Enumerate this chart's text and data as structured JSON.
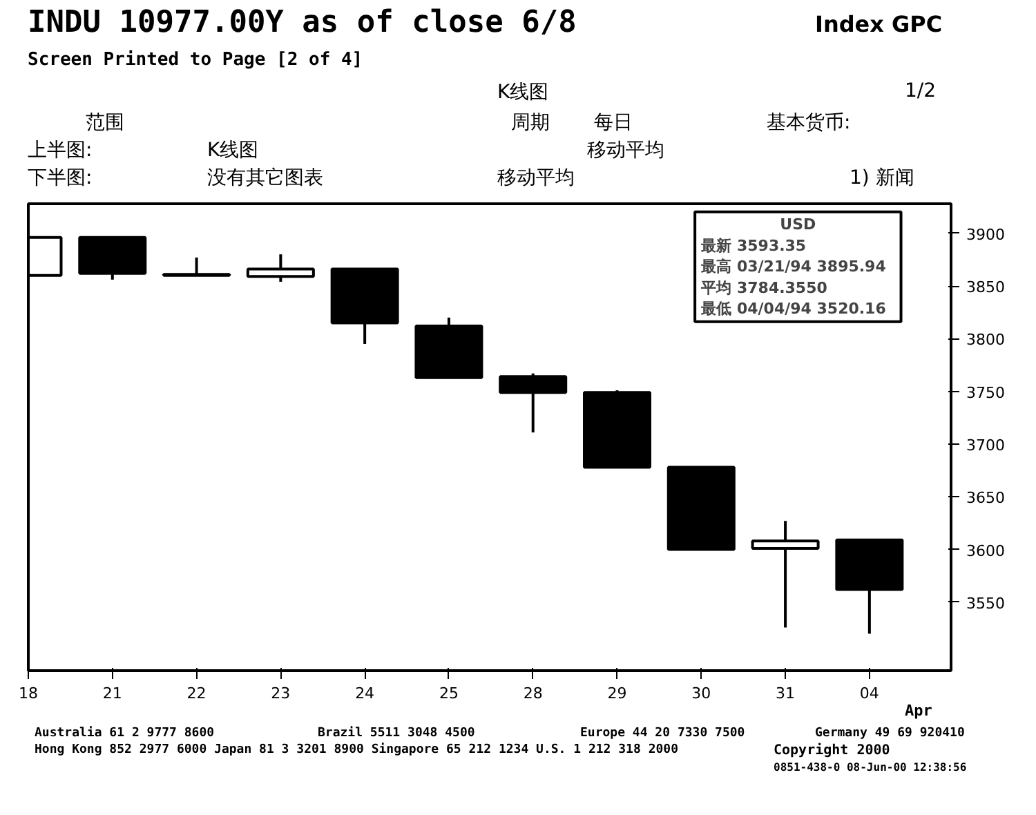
{
  "chart_data": {
    "type": "candlestick",
    "title": "INDU 10977.00Y as of close 6/8",
    "subtitle": "Screen Printed to Page [2 of 4]",
    "categories": [
      "18",
      "21",
      "22",
      "23",
      "24",
      "25",
      "28",
      "29",
      "30",
      "31",
      "04"
    ],
    "ohlc": [
      [
        3860,
        3896,
        3860,
        3896
      ],
      [
        3896,
        3896,
        3856,
        3862
      ],
      [
        3861,
        3877,
        3860,
        3860
      ],
      [
        3859,
        3880,
        3854,
        3866
      ],
      [
        3866,
        3866,
        3795,
        3815
      ],
      [
        3812,
        3820,
        3763,
        3763
      ],
      [
        3764,
        3767,
        3711,
        3749
      ],
      [
        3749,
        3751,
        3678,
        3678
      ],
      [
        3678,
        3678,
        3600,
        3600
      ],
      [
        3601,
        3627,
        3526,
        3608
      ],
      [
        3609,
        3609,
        3520,
        3562
      ]
    ],
    "ylim": [
      3485,
      3928
    ],
    "yticks": [
      3550,
      3600,
      3650,
      3700,
      3750,
      3800,
      3850,
      3900
    ],
    "grid": false,
    "annotations": [
      "Index GPC",
      "K线图",
      "1/2",
      "范围",
      "周期",
      "每日",
      "基本货币:",
      "上半图:",
      "K线图",
      "移动平均",
      "下半图:",
      "没有其它图表",
      "移动平均",
      "1) 新闻",
      "USD",
      "最新 3593.35",
      "最高 03/21/94 3895.94",
      "平均 3784.3550",
      "最低 04/04/94 3520.16",
      "Apr",
      "Australia 61 2 9777 8600",
      "Brazil 5511 3048 4500",
      "Europe 44 20 7330 7500",
      "Germany 49 69 920410",
      "Hong Kong 852 2977 6000  Japan 81 3 3201 8900  Singapore 65 212 1234  U.S. 1 212 318 2000",
      "Copyright 2000",
      "0851-438-0 08-Jun-00 12:38:56"
    ]
  }
}
